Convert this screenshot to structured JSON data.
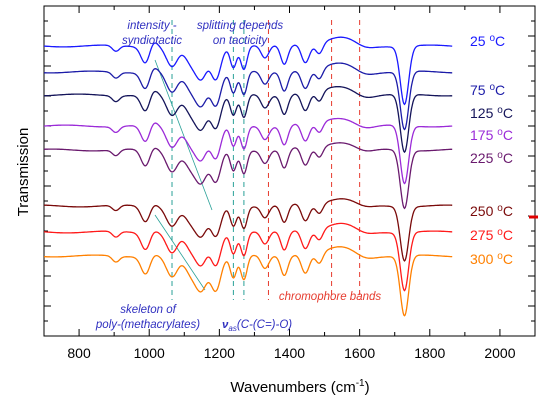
{
  "chart_data": {
    "type": "line",
    "xlabel": "Wavenumbers (cm",
    "xlabel_sup": "-1",
    "xlabel_close": ")",
    "ylabel": "Transmission",
    "xlim": [
      700,
      2100
    ],
    "xticks": [
      800,
      1000,
      1200,
      1400,
      1600,
      1800,
      2000
    ],
    "series": [
      {
        "name": "25 °C",
        "temp": "25",
        "color": "#1a1aff"
      },
      {
        "name": "75 °C",
        "temp": "75",
        "color": "#1c1ca8"
      },
      {
        "name": "125 °C",
        "temp": "125",
        "color": "#14145a"
      },
      {
        "name": "175 °C",
        "temp": "175",
        "color": "#9b2bd8"
      },
      {
        "name": "225 °C",
        "temp": "225",
        "color": "#6a1a6e"
      },
      {
        "name": "250 °C",
        "temp": "250",
        "color": "#7a0a0a"
      },
      {
        "name": "275 °C",
        "temp": "275",
        "color": "#ff1a1a"
      },
      {
        "name": "300 °C",
        "temp": "300",
        "color": "#ff8000"
      }
    ],
    "vertical_markers": [
      {
        "x": 1065,
        "color": "#2aa198"
      },
      {
        "x": 1240,
        "color": "#2aa198"
      },
      {
        "x": 1270,
        "color": "#2aa198"
      },
      {
        "x": 1340,
        "color": "#e63b2e"
      },
      {
        "x": 1520,
        "color": "#e63b2e"
      },
      {
        "x": 1600,
        "color": "#e63b2e"
      }
    ],
    "annotations": {
      "intensity_1": "intensity -",
      "intensity_2": "syndiotactic",
      "splitting_1": "splitting depends",
      "splitting_2": "on tacticity",
      "skeleton_1": "skeleton of",
      "skeleton_2": "poly-(methacrylates)",
      "nu_symbol": "ν",
      "nu_sub": "as",
      "nu_text": "(C-(C=)-O)",
      "chromophore": "chromophore bands"
    },
    "temp_unit": "°C"
  }
}
